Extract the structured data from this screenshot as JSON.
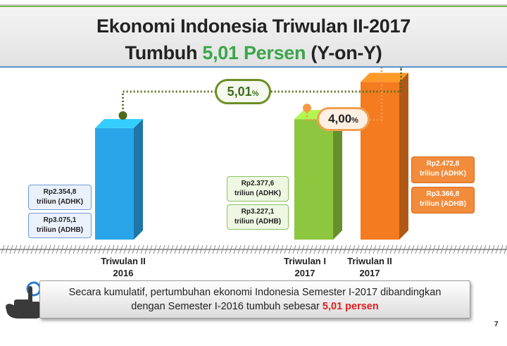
{
  "title": {
    "line1": "Ekonomi Indonesia Triwulan II-2017",
    "line2_prefix": "Tumbuh ",
    "line2_highlight": "5,01 Persen",
    "line2_suffix": " (Y-on-Y)"
  },
  "chart_data": {
    "type": "bar",
    "categories": [
      "Triwulan II 2016",
      "Triwulan I 2017",
      "Triwulan II 2017"
    ],
    "series": [
      {
        "values": [
          2354.8,
          2377.6,
          2472.8
        ]
      }
    ],
    "secondary_values": [
      3075.1,
      3227.1,
      3366.8
    ],
    "bar_colors": [
      "#2aa4e8",
      "#8dc63f",
      "#f47b20"
    ],
    "annotations": [
      {
        "value": "5,01",
        "unit": "%",
        "between": [
          "Triwulan II 2016",
          "Triwulan II 2017"
        ]
      },
      {
        "value": "4,00",
        "unit": "%",
        "between": [
          "Triwulan I 2017",
          "Triwulan II 2017"
        ]
      }
    ]
  },
  "labels": {
    "q2_2016_adhk": "Rp2.354,8\ntriliun (ADHK)",
    "q2_2016_adhb": "Rp3.075,1\ntriliun (ADHB)",
    "q1_2017_adhk": "Rp2.377,6\ntriliun (ADHK)",
    "q1_2017_adhb": "Rp3.227,1\ntriliun (ADHB)",
    "q2_2017_adhk": "Rp2.472,8\ntriliun (ADHK)",
    "q2_2017_adhb": "Rp3.366,8\ntriliun (ADHB)"
  },
  "xlabels": {
    "q2_2016": "Triwulan II\n2016",
    "q1_2017": "Triwulan I\n2017",
    "q2_2017": "Triwulan II\n2017"
  },
  "bubbles": {
    "yoy_value": "5,01",
    "yoy_unit": "%",
    "qtq_value": "4,00",
    "qtq_unit": "%"
  },
  "note": {
    "text_line1": "Secara kumulatif, pertumbuhan ekonomi Indonesia Semester I-2017 dibandingkan",
    "text_line2_prefix": "dengan Semester I-2016 tumbuh sebesar ",
    "text_line2_highlight": "5,01 persen"
  },
  "page_number": "7",
  "icons": {
    "pointer": "pointing-hand-icon"
  },
  "colors": {
    "accent_green": "#3aa64a",
    "accent_red": "#e02020"
  }
}
